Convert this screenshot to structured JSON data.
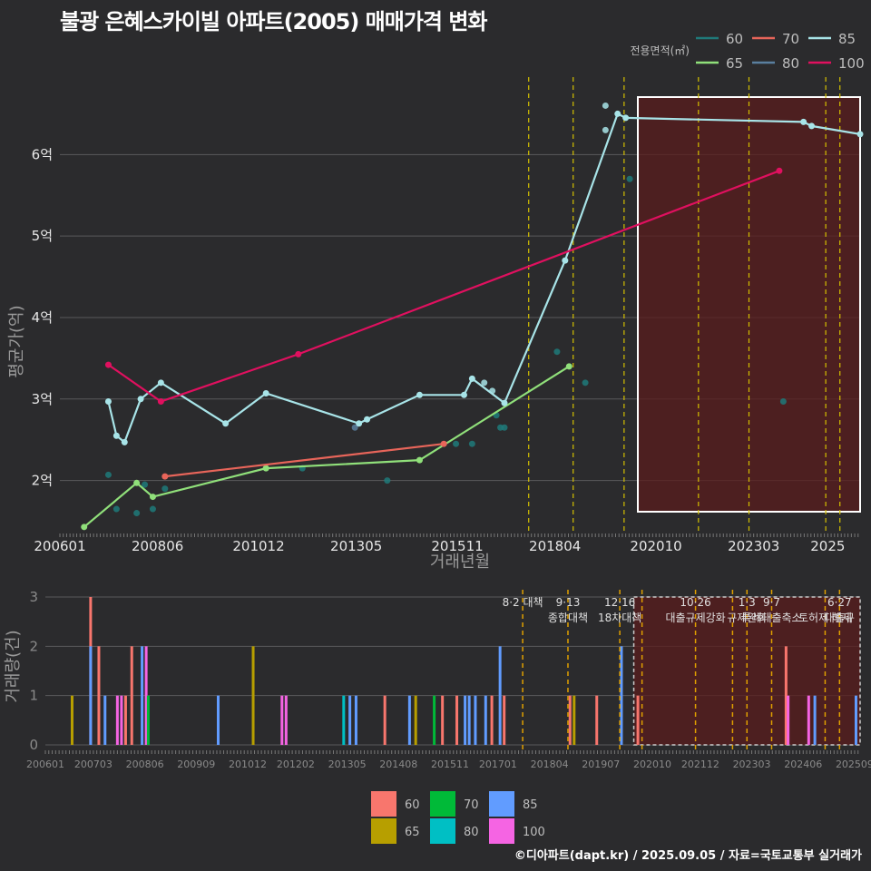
{
  "title": "불광 은혜스카이빌 아파트(2005) 매매가격 변화",
  "footer": "©디아파트(dapt.kr) / 2025.09.05 / 자료=국토교통부 실거래가",
  "chart_data": [
    {
      "type": "line",
      "title": "불광 은혜스카이빌 아파트(2005) 매매가격 변화",
      "xlabel": "거래년월",
      "ylabel": "평균가(억)",
      "x_ticks": [
        "200601",
        "200806",
        "201012",
        "201305",
        "201511",
        "201804",
        "202010",
        "202303",
        "2025"
      ],
      "y_ticks": [
        {
          "v": 2,
          "label": "2억"
        },
        {
          "v": 3,
          "label": "3억"
        },
        {
          "v": 4,
          "label": "4억"
        },
        {
          "v": 5,
          "label": "5억"
        },
        {
          "v": 6,
          "label": "6억"
        }
      ],
      "xlim": [
        2006.0,
        2025.8
      ],
      "ylim": [
        1.35,
        6.95
      ],
      "legend_title": "전용면적(㎡)",
      "legend": [
        {
          "name": "60",
          "color": "#1f7a7a"
        },
        {
          "name": "70",
          "color": "#e8655a"
        },
        {
          "name": "85",
          "color": "#a8e4e8"
        },
        {
          "name": "65",
          "color": "#90e07a"
        },
        {
          "name": "80",
          "color": "#5a7f9f"
        },
        {
          "name": "100",
          "color": "#e0105f"
        }
      ],
      "series": [
        {
          "name": "65",
          "color": "#90e07a",
          "x": [
            2006.6,
            2007.9,
            2008.3,
            2011.1,
            2014.9,
            2018.6
          ],
          "y": [
            1.43,
            1.97,
            1.8,
            2.15,
            2.25,
            3.4
          ]
        },
        {
          "name": "70",
          "color": "#e8655a",
          "x": [
            2008.6,
            2015.5
          ],
          "y": [
            2.05,
            2.45
          ]
        },
        {
          "name": "85",
          "color": "#a8e4e8",
          "x": [
            2007.2,
            2007.4,
            2007.6,
            2008.0,
            2008.5,
            2010.1,
            2011.1,
            2013.4,
            2013.6,
            2014.9,
            2016.0,
            2016.2,
            2017.0,
            2018.5,
            2019.8,
            2020.0,
            2024.4,
            2024.6,
            2025.8
          ],
          "y": [
            2.97,
            2.55,
            2.47,
            3.0,
            3.2,
            2.7,
            3.07,
            2.7,
            2.75,
            3.05,
            3.05,
            3.25,
            2.95,
            4.7,
            6.5,
            6.45,
            6.4,
            6.35,
            6.25
          ]
        },
        {
          "name": "100",
          "color": "#e0105f",
          "x": [
            2007.2,
            2008.5,
            2011.9,
            2023.8
          ],
          "y": [
            3.42,
            2.97,
            3.55,
            5.8
          ]
        }
      ],
      "scatter": [
        {
          "x": 2007.2,
          "y": 2.07,
          "c": "#1f7a7a"
        },
        {
          "x": 2007.4,
          "y": 1.65,
          "c": "#1f7a7a"
        },
        {
          "x": 2007.9,
          "y": 1.6,
          "c": "#1f7a7a"
        },
        {
          "x": 2008.1,
          "y": 1.95,
          "c": "#1f7a7a"
        },
        {
          "x": 2008.3,
          "y": 1.65,
          "c": "#1f7a7a"
        },
        {
          "x": 2008.6,
          "y": 1.9,
          "c": "#1f7a7a"
        },
        {
          "x": 2012.0,
          "y": 2.15,
          "c": "#1f7a7a"
        },
        {
          "x": 2014.1,
          "y": 2.0,
          "c": "#1f7a7a"
        },
        {
          "x": 2015.8,
          "y": 2.45,
          "c": "#1f7a7a"
        },
        {
          "x": 2016.2,
          "y": 2.45,
          "c": "#1f7a7a"
        },
        {
          "x": 2016.8,
          "y": 2.8,
          "c": "#1f7a7a"
        },
        {
          "x": 2016.9,
          "y": 2.65,
          "c": "#1f7a7a"
        },
        {
          "x": 2017.0,
          "y": 2.65,
          "c": "#1f7a7a"
        },
        {
          "x": 2018.3,
          "y": 3.58,
          "c": "#1f7a7a"
        },
        {
          "x": 2019.0,
          "y": 3.2,
          "c": "#1f7a7a"
        },
        {
          "x": 2020.1,
          "y": 5.7,
          "c": "#1f7a7a"
        },
        {
          "x": 2023.9,
          "y": 2.97,
          "c": "#1f7a7a"
        },
        {
          "x": 2013.3,
          "y": 2.65,
          "c": "#5a7f9f"
        },
        {
          "x": 2016.5,
          "y": 3.2,
          "c": "#a8e4e8"
        },
        {
          "x": 2016.7,
          "y": 3.1,
          "c": "#a8e4e8"
        },
        {
          "x": 2019.5,
          "y": 6.6,
          "c": "#a8e4e8"
        },
        {
          "x": 2019.5,
          "y": 6.3,
          "c": "#a8e4e8"
        }
      ],
      "policy_lines": [
        2017.6,
        2018.7,
        2019.96,
        2021.8,
        2023.05,
        2024.95,
        2025.3
      ],
      "highlight_range": [
        2020.3,
        2025.8
      ]
    },
    {
      "type": "bar",
      "xlabel": "",
      "ylabel": "거래량(건)",
      "x_ticks": [
        "200601",
        "200703",
        "200806",
        "200909",
        "201012",
        "201202",
        "201305",
        "201408",
        "201511",
        "201701",
        "201804",
        "201907",
        "202010",
        "202112",
        "202303",
        "202406",
        "202509"
      ],
      "y_ticks": [
        0,
        1,
        2,
        3
      ],
      "xlim": [
        2006.0,
        2025.8
      ],
      "ylim": [
        0,
        3
      ],
      "legend": [
        {
          "name": "60",
          "color": "#f8766d"
        },
        {
          "name": "65",
          "color": "#b79f00"
        },
        {
          "name": "70",
          "color": "#00ba38"
        },
        {
          "name": "80",
          "color": "#00bfc4"
        },
        {
          "name": "85",
          "color": "#619cff"
        },
        {
          "name": "100",
          "color": "#f564e3"
        }
      ],
      "bars": [
        {
          "x": 2006.65,
          "v": 1,
          "s": "65"
        },
        {
          "x": 2007.1,
          "v": 3,
          "s": "60"
        },
        {
          "x": 2007.1,
          "v": 2,
          "s": "85"
        },
        {
          "x": 2007.3,
          "v": 2,
          "s": "60"
        },
        {
          "x": 2007.45,
          "v": 1,
          "s": "85"
        },
        {
          "x": 2007.75,
          "v": 1,
          "s": "100"
        },
        {
          "x": 2007.85,
          "v": 1,
          "s": "100"
        },
        {
          "x": 2007.95,
          "v": 1,
          "s": "60"
        },
        {
          "x": 2008.1,
          "v": 2,
          "s": "60"
        },
        {
          "x": 2008.35,
          "v": 2,
          "s": "85"
        },
        {
          "x": 2008.45,
          "v": 2,
          "s": "100"
        },
        {
          "x": 2008.5,
          "v": 1,
          "s": "70"
        },
        {
          "x": 2010.2,
          "v": 1,
          "s": "85"
        },
        {
          "x": 2011.05,
          "v": 2,
          "s": "65"
        },
        {
          "x": 2011.75,
          "v": 1,
          "s": "100"
        },
        {
          "x": 2011.85,
          "v": 1,
          "s": "100"
        },
        {
          "x": 2013.25,
          "v": 1,
          "s": "80"
        },
        {
          "x": 2013.4,
          "v": 1,
          "s": "85"
        },
        {
          "x": 2013.55,
          "v": 1,
          "s": "85"
        },
        {
          "x": 2014.25,
          "v": 1,
          "s": "60"
        },
        {
          "x": 2014.85,
          "v": 1,
          "s": "85"
        },
        {
          "x": 2015.0,
          "v": 1,
          "s": "65"
        },
        {
          "x": 2015.45,
          "v": 1,
          "s": "70"
        },
        {
          "x": 2015.65,
          "v": 1,
          "s": "60"
        },
        {
          "x": 2016.0,
          "v": 1,
          "s": "60"
        },
        {
          "x": 2016.2,
          "v": 1,
          "s": "85"
        },
        {
          "x": 2016.3,
          "v": 1,
          "s": "85"
        },
        {
          "x": 2016.45,
          "v": 1,
          "s": "85"
        },
        {
          "x": 2016.7,
          "v": 1,
          "s": "85"
        },
        {
          "x": 2016.85,
          "v": 1,
          "s": "60"
        },
        {
          "x": 2017.05,
          "v": 2,
          "s": "85"
        },
        {
          "x": 2017.15,
          "v": 1,
          "s": "60"
        },
        {
          "x": 2018.75,
          "v": 1,
          "s": "60"
        },
        {
          "x": 2018.85,
          "v": 1,
          "s": "65"
        },
        {
          "x": 2019.4,
          "v": 1,
          "s": "60"
        },
        {
          "x": 2020.0,
          "v": 2,
          "s": "85"
        },
        {
          "x": 2020.4,
          "v": 1,
          "s": "60"
        },
        {
          "x": 2024.0,
          "v": 2,
          "s": "60"
        },
        {
          "x": 2024.05,
          "v": 1,
          "s": "100"
        },
        {
          "x": 2024.55,
          "v": 1,
          "s": "100"
        },
        {
          "x": 2024.7,
          "v": 1,
          "s": "85"
        },
        {
          "x": 2025.7,
          "v": 1,
          "s": "85"
        }
      ],
      "policy_lines": [
        {
          "x": 2017.6,
          "label": [
            "8·2 대책"
          ]
        },
        {
          "x": 2018.7,
          "label": [
            "9·13",
            "종합대책"
          ]
        },
        {
          "x": 2019.96,
          "label": [
            "12·16",
            "18차대책"
          ]
        },
        {
          "x": 2020.5,
          "label": []
        },
        {
          "x": 2021.8,
          "label": [
            "10·26",
            "대출규제강화"
          ]
        },
        {
          "x": 2022.7,
          "label": []
        },
        {
          "x": 2023.05,
          "label": [
            "1·3",
            "규제완화"
          ]
        },
        {
          "x": 2023.65,
          "label": [
            "9·7",
            "특례대출축소"
          ]
        },
        {
          "x": 2024.95,
          "label": [
            "",
            "토허제 해제"
          ]
        },
        {
          "x": 2025.3,
          "label": [
            "6·27",
            "대출규"
          ]
        }
      ],
      "highlight_range": [
        2020.3,
        2025.8
      ]
    }
  ]
}
